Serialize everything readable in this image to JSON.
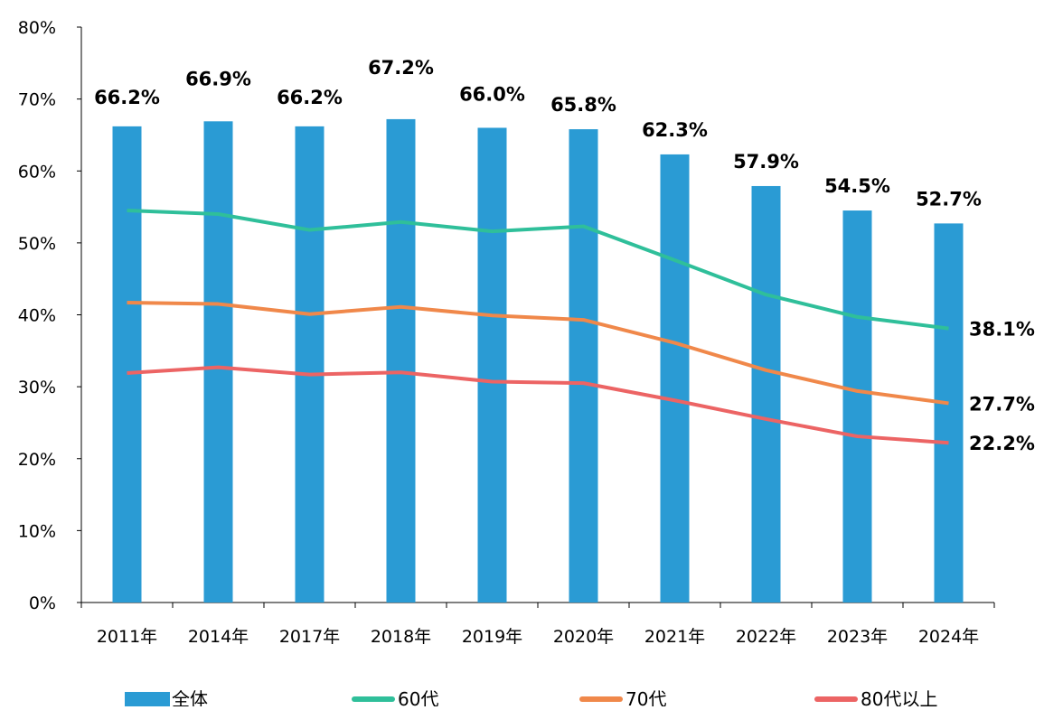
{
  "chart_data": {
    "type": "bar+line",
    "categories": [
      "2011年",
      "2014年",
      "2017年",
      "2018年",
      "2019年",
      "2020年",
      "2021年",
      "2022年",
      "2023年",
      "2024年"
    ],
    "ylim": [
      0,
      80
    ],
    "yticks": [
      "0%",
      "10%",
      "20%",
      "30%",
      "40%",
      "50%",
      "60%",
      "70%",
      "80%"
    ],
    "grid": false,
    "legend_position": "bottom",
    "series": [
      {
        "name": "全体",
        "kind": "bar",
        "color": "#2a9bd4",
        "values": [
          66.2,
          66.9,
          66.2,
          67.2,
          66.0,
          65.8,
          62.3,
          57.9,
          54.5,
          52.7
        ],
        "labels": [
          "66.2%",
          "66.9%",
          "66.2%",
          "67.2%",
          "66.0%",
          "65.8%",
          "62.3%",
          "57.9%",
          "54.5%",
          "52.7%"
        ]
      },
      {
        "name": "60代",
        "kind": "line",
        "color": "#2fbf9a",
        "values": [
          54.5,
          54.0,
          51.8,
          52.9,
          51.6,
          52.3,
          47.6,
          42.8,
          39.7,
          38.1
        ],
        "end_label": "38.1%"
      },
      {
        "name": "70代",
        "kind": "line",
        "color": "#f0884a",
        "values": [
          41.7,
          41.5,
          40.1,
          41.1,
          39.9,
          39.3,
          36.1,
          32.3,
          29.4,
          27.7
        ],
        "end_label": "27.7%"
      },
      {
        "name": "80代以上",
        "kind": "line",
        "color": "#ec6464",
        "values": [
          31.9,
          32.7,
          31.7,
          32.0,
          30.7,
          30.5,
          28.1,
          25.5,
          23.1,
          22.2
        ],
        "end_label": "22.2%"
      }
    ]
  }
}
